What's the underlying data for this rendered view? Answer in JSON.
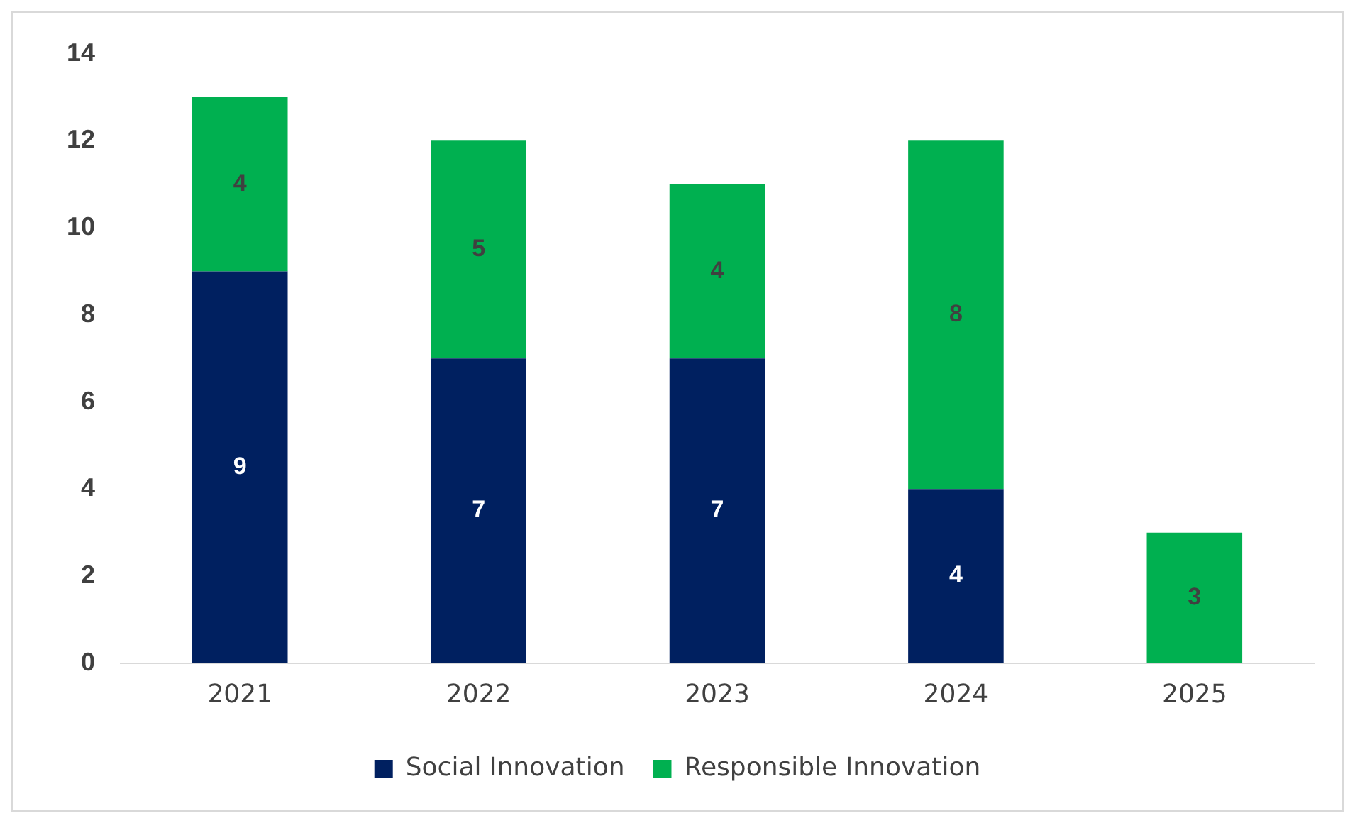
{
  "chart_data": {
    "type": "bar",
    "categories": [
      "2021",
      "2022",
      "2023",
      "2024",
      "2025"
    ],
    "stacked": true,
    "series": [
      {
        "name": "Social Innovation",
        "color": "#002060",
        "values": [
          9,
          7,
          7,
          4,
          null
        ]
      },
      {
        "name": "Responsible Innovation",
        "color": "#00b050",
        "values": [
          4,
          5,
          4,
          8,
          3
        ]
      }
    ],
    "ylim": [
      0,
      14
    ],
    "yticks": [
      0,
      2,
      4,
      6,
      8,
      10,
      12,
      14
    ],
    "grid": false,
    "legend": "bottom",
    "data_labels": true
  }
}
